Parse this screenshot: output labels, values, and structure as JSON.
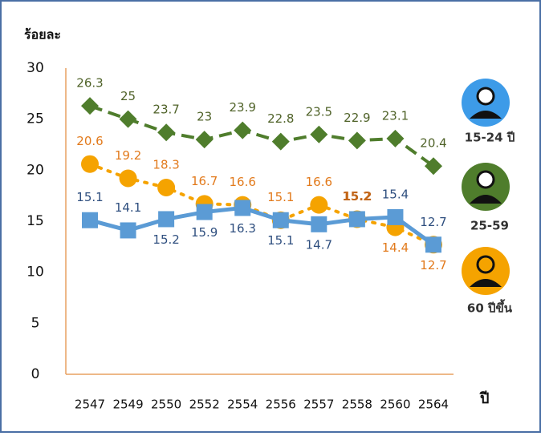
{
  "chart_data": {
    "type": "line",
    "y_label": "ร้อยละ",
    "x_label": "ปี",
    "categories": [
      "2547",
      "2549",
      "2550",
      "2552",
      "2554",
      "2556",
      "2557",
      "2558",
      "2560",
      "2564"
    ],
    "series": [
      {
        "name": "15-24 ปี",
        "color": "#5b9bd5",
        "label_color": "#2f4f7f",
        "values": [
          15.1,
          14.1,
          15.2,
          15.9,
          16.3,
          15.1,
          14.7,
          15.2,
          15.4,
          12.7
        ]
      },
      {
        "name": "25-59",
        "color": "#4f7d2c",
        "label_color": "#4f6228",
        "values": [
          26.3,
          25,
          23.7,
          23,
          23.9,
          22.8,
          23.5,
          22.9,
          23.1,
          20.4
        ]
      },
      {
        "name": "60 ปีขึ้น",
        "color": "#f5a300",
        "label_color": "#e27a1c",
        "values": [
          20.6,
          19.2,
          18.3,
          16.7,
          16.6,
          15.1,
          16.6,
          15.2,
          14.4,
          12.7
        ]
      }
    ],
    "ylim": [
      0,
      30
    ],
    "yticks": [
      0,
      5,
      10,
      15,
      20,
      25,
      30
    ]
  }
}
